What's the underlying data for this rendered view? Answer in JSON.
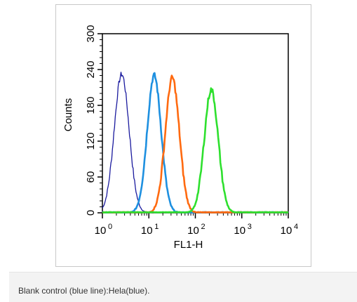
{
  "chart_data": {
    "type": "line",
    "title": "",
    "xlabel": "FL1-H",
    "ylabel": "Counts",
    "x_scale": "log10",
    "xlim": [
      1,
      10000
    ],
    "ylim": [
      0,
      300
    ],
    "x_ticks": [
      {
        "base": "10",
        "exp": "0"
      },
      {
        "base": "10",
        "exp": "1"
      },
      {
        "base": "10",
        "exp": "2"
      },
      {
        "base": "10",
        "exp": "3"
      },
      {
        "base": "10",
        "exp": "4"
      }
    ],
    "y_ticks": [
      "0",
      "60",
      "120",
      "180",
      "240",
      "300"
    ],
    "y_tick_values": [
      0,
      60,
      120,
      180,
      240,
      300
    ],
    "grid": false,
    "legend": "none",
    "series": [
      {
        "color": "#1a1a9e",
        "peak_x": 2.6,
        "peak_y": 232,
        "width": 0.16,
        "start_x": 1.0
      },
      {
        "color": "#1e90e0",
        "peak_x": 13,
        "peak_y": 230,
        "width": 0.15,
        "start_x": 1.0
      },
      {
        "color": "#ff6a10",
        "peak_x": 32,
        "peak_y": 226,
        "width": 0.15,
        "start_x": 1.0
      },
      {
        "color": "#2ee02e",
        "peak_x": 220,
        "peak_y": 206,
        "width": 0.15,
        "start_x": 1.0
      }
    ]
  },
  "caption": "Blank control (blue line):Hela(blue)."
}
